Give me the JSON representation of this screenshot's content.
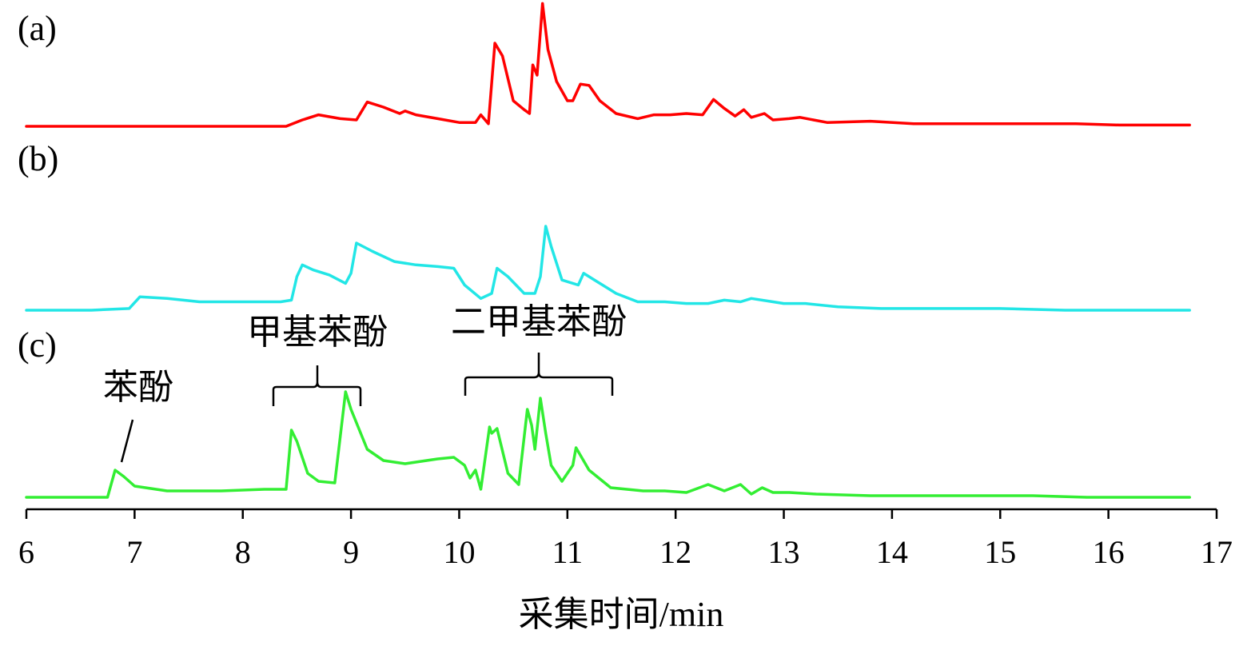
{
  "chart_data": {
    "type": "line",
    "xlabel": "采集时间/min",
    "ylabel": "",
    "xlim": [
      6,
      17
    ],
    "x_ticks": [
      "6",
      "7",
      "8",
      "9",
      "10",
      "11",
      "12",
      "13",
      "14",
      "15",
      "16",
      "17"
    ],
    "grid": false,
    "series": [
      {
        "label": "(a)",
        "color": "#ff0000",
        "points": [
          [
            6,
            0
          ],
          [
            6.9,
            0
          ],
          [
            7.5,
            0
          ],
          [
            8.0,
            0
          ],
          [
            8.4,
            0
          ],
          [
            8.55,
            0.05
          ],
          [
            8.7,
            0.09
          ],
          [
            8.9,
            0.06
          ],
          [
            9.05,
            0.05
          ],
          [
            9.15,
            0.19
          ],
          [
            9.3,
            0.15
          ],
          [
            9.45,
            0.1
          ],
          [
            9.5,
            0.12
          ],
          [
            9.6,
            0.09
          ],
          [
            9.8,
            0.06
          ],
          [
            10.0,
            0.03
          ],
          [
            10.15,
            0.03
          ],
          [
            10.2,
            0.09
          ],
          [
            10.27,
            0.02
          ],
          [
            10.33,
            0.65
          ],
          [
            10.4,
            0.55
          ],
          [
            10.5,
            0.2
          ],
          [
            10.6,
            0.13
          ],
          [
            10.65,
            0.1
          ],
          [
            10.68,
            0.48
          ],
          [
            10.72,
            0.4
          ],
          [
            10.77,
            0.96
          ],
          [
            10.82,
            0.6
          ],
          [
            10.9,
            0.35
          ],
          [
            11.0,
            0.2
          ],
          [
            11.05,
            0.2
          ],
          [
            11.12,
            0.33
          ],
          [
            11.2,
            0.32
          ],
          [
            11.3,
            0.2
          ],
          [
            11.45,
            0.1
          ],
          [
            11.65,
            0.06
          ],
          [
            11.8,
            0.09
          ],
          [
            11.95,
            0.09
          ],
          [
            12.1,
            0.1
          ],
          [
            12.25,
            0.09
          ],
          [
            12.35,
            0.21
          ],
          [
            12.45,
            0.14
          ],
          [
            12.55,
            0.08
          ],
          [
            12.63,
            0.13
          ],
          [
            12.7,
            0.07
          ],
          [
            12.82,
            0.1
          ],
          [
            12.9,
            0.05
          ],
          [
            13.05,
            0.06
          ],
          [
            13.15,
            0.07
          ],
          [
            13.4,
            0.03
          ],
          [
            13.8,
            0.04
          ],
          [
            14.2,
            0.02
          ],
          [
            14.6,
            0.02
          ],
          [
            15.0,
            0.02
          ],
          [
            15.3,
            0.02
          ],
          [
            15.7,
            0.02
          ],
          [
            16.1,
            0.01
          ],
          [
            16.75,
            0.01
          ]
        ]
      },
      {
        "label": "(b)",
        "color": "#22e6e6",
        "points": [
          [
            6,
            0
          ],
          [
            6.6,
            0
          ],
          [
            6.95,
            0.01
          ],
          [
            7.05,
            0.08
          ],
          [
            7.3,
            0.07
          ],
          [
            7.6,
            0.05
          ],
          [
            8.0,
            0.05
          ],
          [
            8.35,
            0.05
          ],
          [
            8.45,
            0.06
          ],
          [
            8.5,
            0.2
          ],
          [
            8.55,
            0.27
          ],
          [
            8.65,
            0.24
          ],
          [
            8.8,
            0.21
          ],
          [
            8.95,
            0.16
          ],
          [
            9.0,
            0.22
          ],
          [
            9.05,
            0.4
          ],
          [
            9.2,
            0.35
          ],
          [
            9.4,
            0.29
          ],
          [
            9.6,
            0.27
          ],
          [
            9.8,
            0.26
          ],
          [
            9.95,
            0.25
          ],
          [
            10.05,
            0.15
          ],
          [
            10.2,
            0.07
          ],
          [
            10.3,
            0.1
          ],
          [
            10.35,
            0.25
          ],
          [
            10.45,
            0.2
          ],
          [
            10.6,
            0.1
          ],
          [
            10.7,
            0.1
          ],
          [
            10.75,
            0.2
          ],
          [
            10.8,
            0.5
          ],
          [
            10.85,
            0.38
          ],
          [
            10.95,
            0.18
          ],
          [
            11.1,
            0.15
          ],
          [
            11.15,
            0.22
          ],
          [
            11.25,
            0.18
          ],
          [
            11.45,
            0.1
          ],
          [
            11.65,
            0.05
          ],
          [
            11.9,
            0.05
          ],
          [
            12.1,
            0.04
          ],
          [
            12.3,
            0.04
          ],
          [
            12.45,
            0.06
          ],
          [
            12.6,
            0.05
          ],
          [
            12.7,
            0.07
          ],
          [
            12.9,
            0.05
          ],
          [
            13.0,
            0.04
          ],
          [
            13.2,
            0.04
          ],
          [
            13.5,
            0.02
          ],
          [
            13.9,
            0.01
          ],
          [
            14.5,
            0.01
          ],
          [
            15.0,
            0.01
          ],
          [
            15.6,
            0.0
          ],
          [
            16.2,
            0.0
          ],
          [
            16.75,
            0.0
          ]
        ]
      },
      {
        "label": "(c)",
        "color": "#33ee33",
        "points": [
          [
            6,
            0
          ],
          [
            6.5,
            0
          ],
          [
            6.75,
            0
          ],
          [
            6.82,
            0.17
          ],
          [
            6.9,
            0.13
          ],
          [
            7.0,
            0.07
          ],
          [
            7.3,
            0.04
          ],
          [
            7.8,
            0.04
          ],
          [
            8.2,
            0.05
          ],
          [
            8.4,
            0.05
          ],
          [
            8.45,
            0.42
          ],
          [
            8.5,
            0.35
          ],
          [
            8.6,
            0.15
          ],
          [
            8.7,
            0.1
          ],
          [
            8.85,
            0.09
          ],
          [
            8.95,
            0.66
          ],
          [
            9.0,
            0.55
          ],
          [
            9.15,
            0.3
          ],
          [
            9.3,
            0.23
          ],
          [
            9.5,
            0.21
          ],
          [
            9.8,
            0.24
          ],
          [
            9.95,
            0.25
          ],
          [
            10.05,
            0.2
          ],
          [
            10.1,
            0.12
          ],
          [
            10.15,
            0.17
          ],
          [
            10.2,
            0.05
          ],
          [
            10.28,
            0.44
          ],
          [
            10.3,
            0.4
          ],
          [
            10.35,
            0.43
          ],
          [
            10.45,
            0.15
          ],
          [
            10.55,
            0.08
          ],
          [
            10.63,
            0.55
          ],
          [
            10.67,
            0.45
          ],
          [
            10.7,
            0.3
          ],
          [
            10.75,
            0.62
          ],
          [
            10.8,
            0.4
          ],
          [
            10.85,
            0.2
          ],
          [
            10.95,
            0.1
          ],
          [
            11.05,
            0.2
          ],
          [
            11.08,
            0.31
          ],
          [
            11.2,
            0.17
          ],
          [
            11.4,
            0.06
          ],
          [
            11.7,
            0.04
          ],
          [
            11.9,
            0.04
          ],
          [
            12.1,
            0.03
          ],
          [
            12.3,
            0.08
          ],
          [
            12.45,
            0.04
          ],
          [
            12.6,
            0.08
          ],
          [
            12.7,
            0.02
          ],
          [
            12.8,
            0.06
          ],
          [
            12.9,
            0.03
          ],
          [
            13.05,
            0.03
          ],
          [
            13.3,
            0.02
          ],
          [
            13.8,
            0.01
          ],
          [
            14.3,
            0.01
          ],
          [
            14.8,
            0.01
          ],
          [
            15.3,
            0.01
          ],
          [
            15.8,
            0.0
          ],
          [
            16.2,
            0.0
          ],
          [
            16.75,
            0.0
          ]
        ]
      }
    ],
    "annotations": [
      {
        "text": "苯酚",
        "x": 6.85,
        "series": "(c)"
      },
      {
        "text": "甲基苯酚",
        "range": [
          8.35,
          9.15
        ],
        "series": "(c)"
      },
      {
        "text": "二甲基苯酚",
        "range": [
          10.07,
          11.45
        ],
        "series": "(c)"
      }
    ]
  }
}
